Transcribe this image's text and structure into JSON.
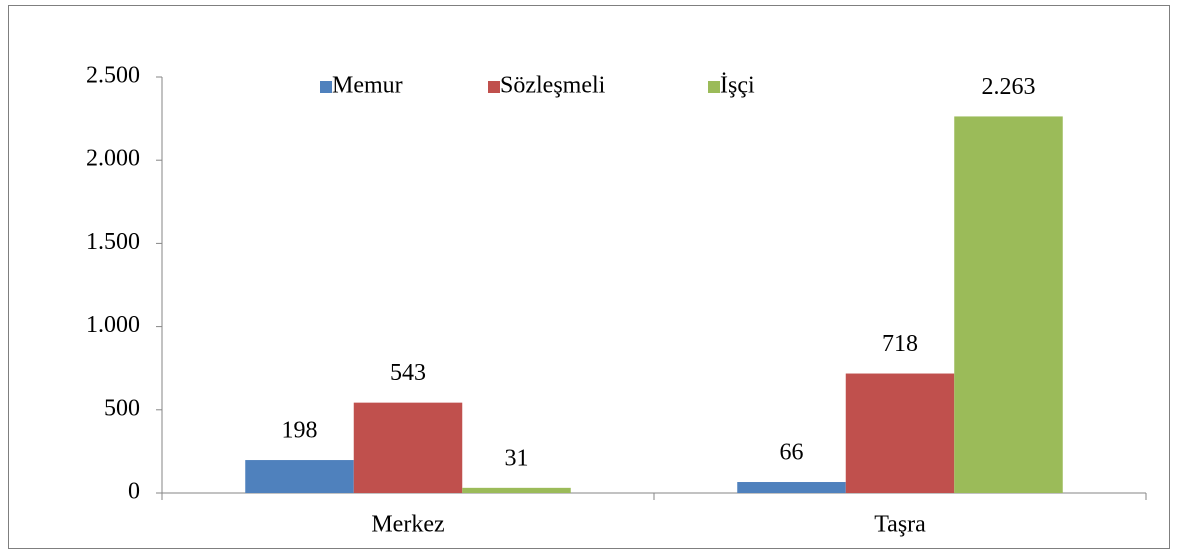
{
  "chart_data": {
    "type": "bar",
    "categories": [
      "Merkez",
      "Taşra"
    ],
    "series": [
      {
        "name": "Memur",
        "color": "#4f81bd",
        "values": [
          198,
          66
        ]
      },
      {
        "name": "Sözleşmeli",
        "color": "#c0504d",
        "values": [
          543,
          718
        ]
      },
      {
        "name": "İşçi",
        "color": "#9bbb59",
        "values": [
          31,
          2263
        ],
        "value_labels": [
          "31",
          "2.263"
        ]
      }
    ],
    "ylim": [
      0,
      2500
    ],
    "yticks": [
      0,
      500,
      {
        "value": 1000,
        "label": "1.000"
      },
      {
        "value": 1500,
        "label": "1.500"
      },
      {
        "value": 2000,
        "label": "2.000"
      },
      {
        "value": 2500,
        "label": "2.500"
      }
    ],
    "grid": false,
    "legend": "top"
  }
}
